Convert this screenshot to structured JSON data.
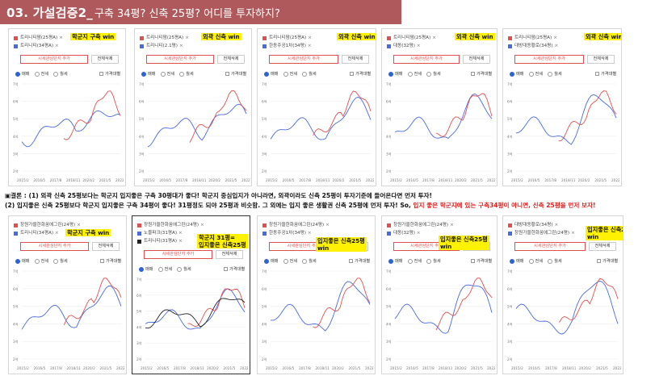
{
  "title": {
    "number": "03. 가설검증2_",
    "subtitle": "구축 34평? 신축 25평? 어디를 투자하지?"
  },
  "colors": {
    "title_bg": "#b0595c",
    "red_series": "#e05050",
    "blue_series": "#4a6ae0",
    "highlight": "#fff200",
    "accent_red": "#e02020"
  },
  "ui_labels": {
    "add_button": "시세관심단지 추가",
    "delete_button": "전체삭제",
    "radio_trade": "매매",
    "radio_jeonse": "전세",
    "radio_wolse": "월세",
    "checkbox_price": "가격대별",
    "remove_mark": "×"
  },
  "x_ticks": [
    "2015/2",
    "2016/5",
    "2017/8",
    "2018/11",
    "2020/2",
    "2021/5",
    "2022/8"
  ],
  "y_ticks": [
    "7억",
    "6억",
    "5억",
    "4억",
    "3억",
    "2억"
  ],
  "top_panels": [
    {
      "legend": [
        {
          "color": "#e05050",
          "label": "트리니티팜(25평A)"
        },
        {
          "color": "#4a6ae0",
          "label": "트리니티(34평A)"
        }
      ],
      "highlight": "학군지 구축 win"
    },
    {
      "legend": [
        {
          "color": "#e05050",
          "label": "트리니티팜(25평A)"
        },
        {
          "color": "#4a6ae0",
          "label": "트리니티(2.1평)"
        }
      ],
      "highlight": "외곽 신축 win"
    },
    {
      "legend": [
        {
          "color": "#e05050",
          "label": "트리니티팜(25평A)"
        },
        {
          "color": "#4a6ae0",
          "label": "한동주공1차(34평)"
        }
      ],
      "highlight": "외곽 신축 win"
    },
    {
      "legend": [
        {
          "color": "#e05050",
          "label": "트리니티팜(25평A)"
        },
        {
          "color": "#4a6ae0",
          "label": "대동(32평)"
        }
      ],
      "highlight": "외곽 신축 win"
    },
    {
      "legend": [
        {
          "color": "#e05050",
          "label": "트리니티팜(25평A)"
        },
        {
          "color": "#4a6ae0",
          "label": "대방대동황로(34평)"
        }
      ],
      "highlight": "외곽 신축 win"
    }
  ],
  "bottom_panels": [
    {
      "legend": [
        {
          "color": "#e05050",
          "label": "창원가을한화꿈에그린(24평)"
        },
        {
          "color": "#4a6ae0",
          "label": "트리니티(34평A)"
        }
      ],
      "highlight": "학군지 구축 win"
    },
    {
      "legend": [
        {
          "color": "#e05050",
          "label": "창원가을한화꿈에그린(24평)"
        },
        {
          "color": "#4a6ae0",
          "label": "노블파크(31평A)"
        },
        {
          "color": "#222222",
          "label": "트리니티(31평A)"
        }
      ],
      "highlight": "학군지 31평=\n입지좋은 신축25평"
    },
    {
      "legend": [
        {
          "color": "#e05050",
          "label": "창원가을한화꿈에그린(24평)"
        },
        {
          "color": "#4a6ae0",
          "label": "한동주공1차(34평)"
        }
      ],
      "highlight": "입지좋은 신축25평\nwin"
    },
    {
      "legend": [
        {
          "color": "#e05050",
          "label": "창원가을한화꿈에그린(24평)"
        },
        {
          "color": "#4a6ae0",
          "label": "대동(32평)"
        }
      ],
      "highlight": "입지좋은 신축25평\nwin"
    },
    {
      "legend": [
        {
          "color": "#e05050",
          "label": "대방대동황로(34평)"
        },
        {
          "color": "#4a6ae0",
          "label": "창원가을한화꿈에그린(24평)"
        }
      ],
      "highlight": "입지좋은 신축25평\nwin"
    }
  ],
  "conclusion": {
    "line1": "▣결론 : (1) 외곽 신축 25평보다는 학군지 입지좋은 구축 30평대가 좋다! 학군지 중심입지가 아니라면, 외곽이라도 신축 25평이 투자기준에 들어온다면 먼저 투자!",
    "line2_black": "(2) 입지좋은 신축 25평보다 학군지 입지좋은 구축 34평이 좋다! 31평정도 되야 25평과 비슷함. 그 외에는 입지 좋은 생활권 신축 25평에 먼저 투자!  So, ",
    "line2_red": "입지 좋은 학군지에 있는 구축34평이 아니면, 신축 25평을 먼저 보자!"
  }
}
